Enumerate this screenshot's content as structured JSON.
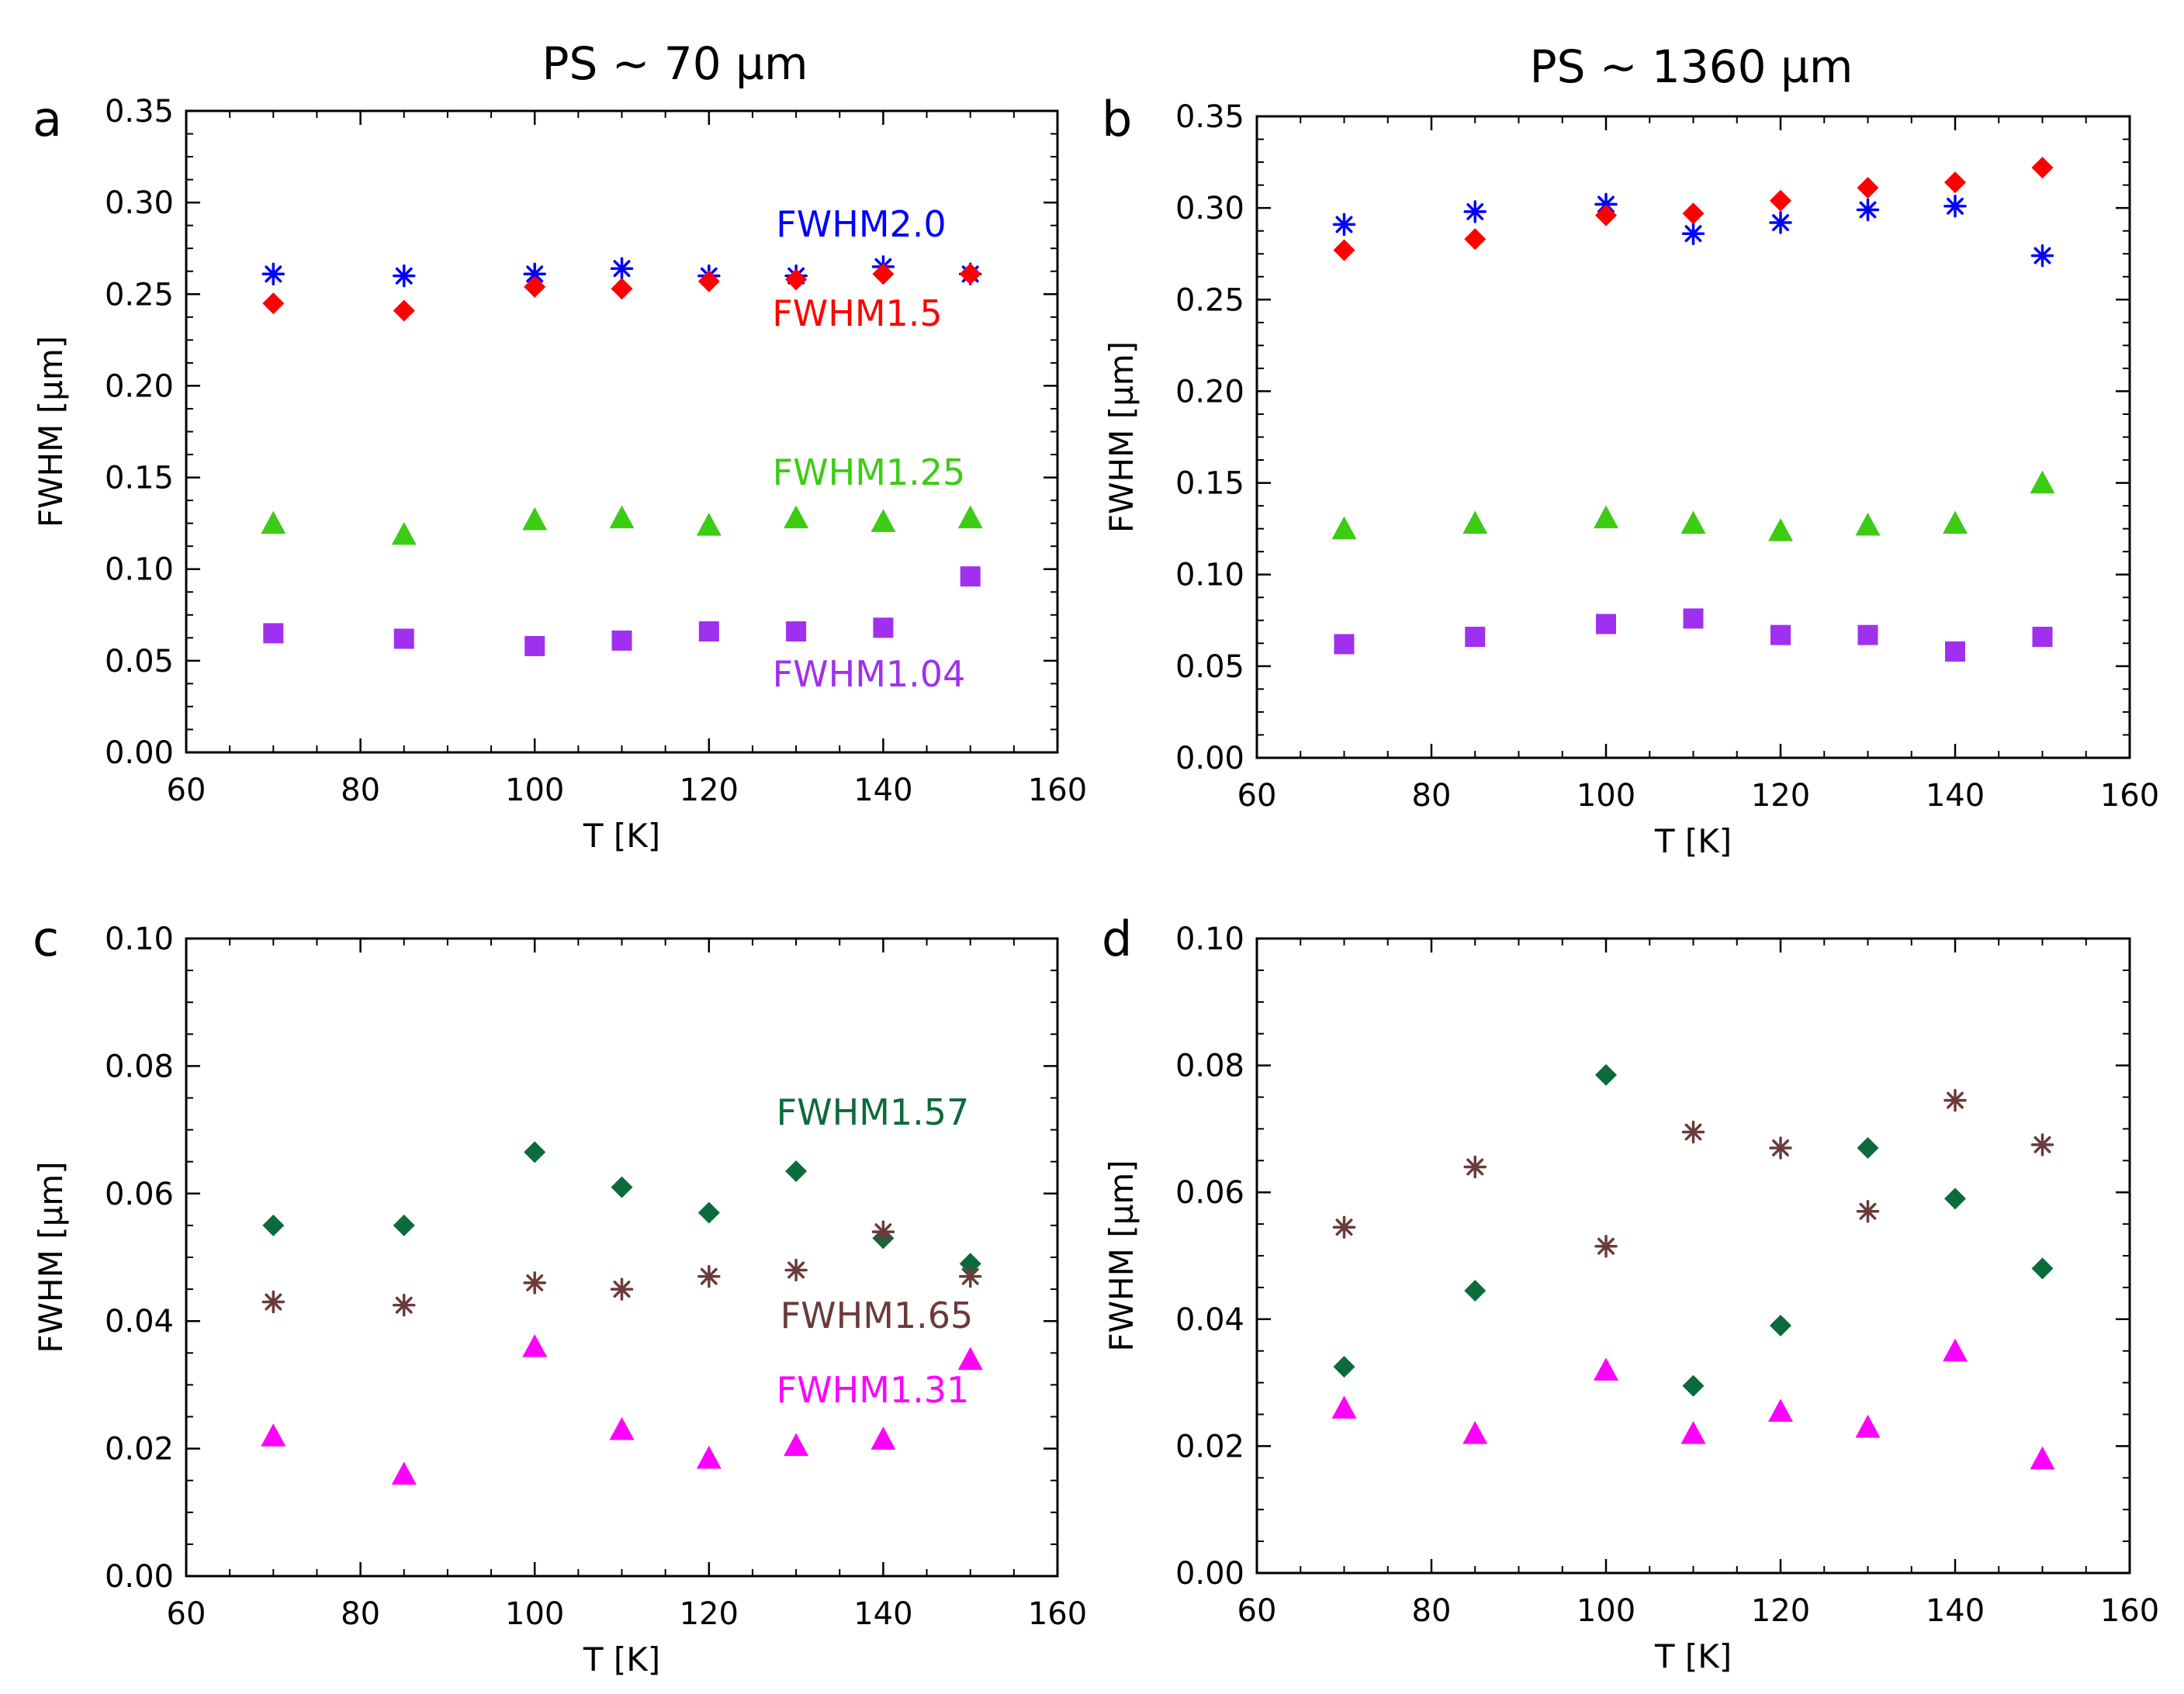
{
  "figure": {
    "column_titles": [
      "PS ~ 70 µm",
      "PS ~ 1360 µm"
    ]
  },
  "chart_data": [
    {
      "panel": "a",
      "type": "scatter",
      "xlabel": "T [K]",
      "ylabel": "FWHM [µm]",
      "xlim": [
        60,
        160
      ],
      "ylim": [
        0,
        0.35
      ],
      "xticks": [
        60,
        80,
        100,
        120,
        140,
        160
      ],
      "yticks": [
        0.0,
        0.05,
        0.1,
        0.15,
        0.2,
        0.25,
        0.3,
        0.35
      ],
      "ytick_decimals": 2,
      "x": [
        70,
        85,
        100,
        110,
        120,
        130,
        140,
        150
      ],
      "series": [
        {
          "name": "FWHM2.0",
          "color": "#0000ff",
          "marker": "asterisk",
          "values": [
            0.261,
            0.26,
            0.261,
            0.264,
            0.26,
            0.26,
            0.265,
            0.261
          ]
        },
        {
          "name": "FWHM1.5",
          "color": "#ff0000",
          "marker": "diamond",
          "values": [
            0.245,
            0.241,
            0.254,
            0.253,
            0.257,
            0.258,
            0.261,
            0.261
          ]
        },
        {
          "name": "FWHM1.25",
          "color": "#3ccc14",
          "marker": "triangle",
          "values": [
            0.125,
            0.119,
            0.127,
            0.128,
            0.124,
            0.128,
            0.126,
            0.128
          ]
        },
        {
          "name": "FWHM1.04",
          "color": "#a030f0",
          "marker": "square",
          "values": [
            0.065,
            0.062,
            0.058,
            0.061,
            0.066,
            0.066,
            0.068,
            0.096
          ]
        }
      ]
    },
    {
      "panel": "b",
      "type": "scatter",
      "xlabel": "T [K]",
      "ylabel": "FWHM [µm]",
      "xlim": [
        60,
        160
      ],
      "ylim": [
        0,
        0.35
      ],
      "xticks": [
        60,
        80,
        100,
        120,
        140,
        160
      ],
      "yticks": [
        0.0,
        0.05,
        0.1,
        0.15,
        0.2,
        0.25,
        0.3,
        0.35
      ],
      "ytick_decimals": 2,
      "x": [
        70,
        85,
        100,
        110,
        120,
        130,
        140,
        150
      ],
      "series": [
        {
          "name": "FWHM2.0",
          "color": "#0000ff",
          "marker": "asterisk",
          "values": [
            0.291,
            0.298,
            0.302,
            0.286,
            0.292,
            0.299,
            0.301,
            0.274
          ]
        },
        {
          "name": "FWHM1.5",
          "color": "#ff0000",
          "marker": "diamond",
          "values": [
            0.277,
            0.283,
            0.296,
            0.297,
            0.304,
            0.311,
            0.314,
            0.322
          ]
        },
        {
          "name": "FWHM1.25",
          "color": "#3ccc14",
          "marker": "triangle",
          "values": [
            0.125,
            0.128,
            0.131,
            0.128,
            0.124,
            0.127,
            0.128,
            0.15
          ]
        },
        {
          "name": "FWHM1.04",
          "color": "#a030f0",
          "marker": "square",
          "values": [
            0.062,
            0.066,
            0.073,
            0.076,
            0.067,
            0.067,
            0.058,
            0.066
          ]
        }
      ]
    },
    {
      "panel": "c",
      "type": "scatter",
      "xlabel": "T [K]",
      "ylabel": "FWHM [µm]",
      "xlim": [
        60,
        160
      ],
      "ylim": [
        0,
        0.1
      ],
      "xticks": [
        60,
        80,
        100,
        120,
        140,
        160
      ],
      "yticks": [
        0.0,
        0.02,
        0.04,
        0.06,
        0.08,
        0.1
      ],
      "ytick_decimals": 2,
      "x": [
        70,
        85,
        100,
        110,
        120,
        130,
        140,
        150
      ],
      "series": [
        {
          "name": "FWHM1.57",
          "color": "#0c6b3a",
          "marker": "diamond",
          "values": [
            0.055,
            0.055,
            0.0665,
            0.061,
            0.057,
            0.0635,
            0.053,
            0.049
          ]
        },
        {
          "name": "FWHM1.65",
          "color": "#6b3a3a",
          "marker": "asterisk",
          "values": [
            0.043,
            0.0425,
            0.046,
            0.045,
            0.047,
            0.048,
            0.054,
            0.047
          ]
        },
        {
          "name": "FWHM1.31",
          "color": "#ff00ff",
          "marker": "triangle",
          "values": [
            0.022,
            0.016,
            0.036,
            0.023,
            0.0185,
            0.0205,
            0.0215,
            0.034
          ]
        }
      ]
    },
    {
      "panel": "d",
      "type": "scatter",
      "xlabel": "T [K]",
      "ylabel": "FWHM [µm]",
      "xlim": [
        60,
        160
      ],
      "ylim": [
        0,
        0.1
      ],
      "xticks": [
        60,
        80,
        100,
        120,
        140,
        160
      ],
      "yticks": [
        0.0,
        0.02,
        0.04,
        0.06,
        0.08,
        0.1
      ],
      "ytick_decimals": 2,
      "x": [
        70,
        85,
        100,
        110,
        120,
        130,
        140,
        150
      ],
      "series": [
        {
          "name": "FWHM1.57",
          "color": "#0c6b3a",
          "marker": "diamond",
          "values": [
            0.0325,
            0.0445,
            0.0785,
            0.0295,
            0.039,
            0.067,
            0.059,
            0.048
          ]
        },
        {
          "name": "FWHM1.65",
          "color": "#6b3a3a",
          "marker": "asterisk",
          "values": [
            0.0545,
            0.064,
            0.0515,
            0.0695,
            0.067,
            0.057,
            0.0745,
            0.0675
          ]
        },
        {
          "name": "FWHM1.31",
          "color": "#ff00ff",
          "marker": "triangle",
          "values": [
            0.026,
            0.022,
            0.032,
            0.022,
            0.0255,
            0.023,
            0.035,
            0.018
          ]
        }
      ]
    }
  ]
}
